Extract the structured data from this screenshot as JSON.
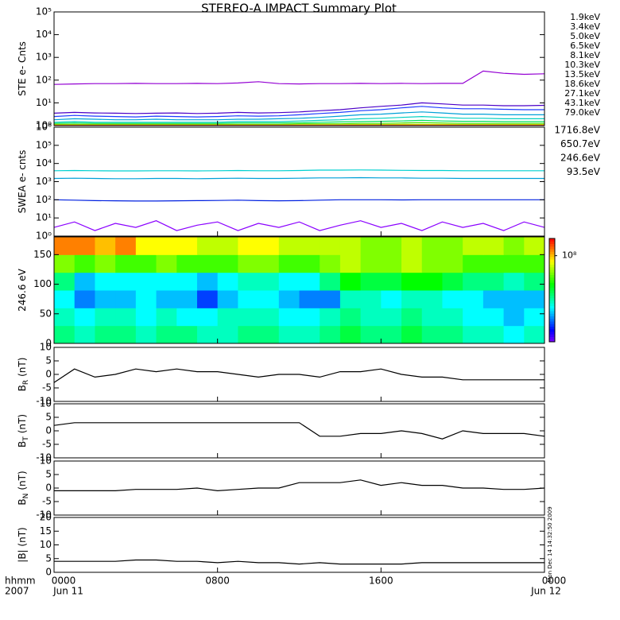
{
  "title": "STEREO-A IMPACT Summary Plot",
  "timestamp": "Mon Dec 14 14:32:50 2009",
  "x_axis": {
    "xlim": [
      0,
      24
    ],
    "xticks": [
      {
        "value": 0,
        "label": "0000"
      },
      {
        "value": 8,
        "label": "0800"
      },
      {
        "value": 16,
        "label": "1600"
      },
      {
        "value": 24,
        "label": "0000"
      }
    ],
    "date_labels": [
      {
        "value": 0,
        "label": "Jun 11"
      },
      {
        "value": 24,
        "label": "Jun 12"
      }
    ],
    "left_labels": [
      "hhmm",
      "2007"
    ],
    "x": [
      0,
      1,
      2,
      3,
      4,
      5,
      6,
      7,
      8,
      9,
      10,
      11,
      12,
      13,
      14,
      15,
      16,
      17,
      18,
      19,
      20,
      21,
      22,
      23,
      24
    ]
  },
  "chart_data": [
    {
      "type": "line",
      "y_label": "STE e- Cnts",
      "log_scale": true,
      "ylim": [
        1,
        100000
      ],
      "yticks": [
        {
          "value": 1,
          "label": "10⁰"
        },
        {
          "value": 10,
          "label": "10¹"
        },
        {
          "value": 100,
          "label": "10²"
        },
        {
          "value": 1000,
          "label": "10³"
        },
        {
          "value": 10000,
          "label": "10⁴"
        },
        {
          "value": 100000,
          "label": "10⁵"
        }
      ],
      "series": [
        {
          "name": "1.9keV",
          "color": "#9400d3",
          "values": [
            65,
            68,
            70,
            70,
            72,
            70,
            70,
            72,
            70,
            75,
            85,
            70,
            68,
            70,
            70,
            72,
            70,
            72,
            70,
            72,
            72,
            250,
            200,
            180,
            190
          ]
        },
        {
          "name": "3.4keV",
          "color": "#4b00c8",
          "values": [
            3.5,
            3.8,
            3.6,
            3.5,
            3.4,
            3.5,
            3.6,
            3.4,
            3.5,
            3.8,
            3.6,
            3.7,
            4,
            4.5,
            5,
            6,
            7,
            8,
            10,
            9,
            8,
            8,
            7.5,
            7.5,
            7.8
          ]
        },
        {
          "name": "5.0keV",
          "color": "#1e3cff",
          "values": [
            2.5,
            2.8,
            2.6,
            2.5,
            2.4,
            2.6,
            2.5,
            2.4,
            2.5,
            2.7,
            2.6,
            2.7,
            3,
            3.4,
            3.8,
            4.5,
            5,
            6,
            7,
            6,
            5.5,
            5.5,
            5.2,
            5,
            5
          ]
        },
        {
          "name": "6.5keV",
          "color": "#00a0d8",
          "values": [
            1.8,
            2,
            1.9,
            1.8,
            1.8,
            1.9,
            1.8,
            1.8,
            1.8,
            1.9,
            1.9,
            2,
            2.1,
            2.3,
            2.6,
            3,
            3.2,
            3.6,
            4,
            3.6,
            3.2,
            3.2,
            3,
            3,
            3
          ]
        },
        {
          "name": "8.1keV",
          "color": "#00d0c0",
          "values": [
            1.4,
            1.5,
            1.4,
            1.4,
            1.4,
            1.4,
            1.4,
            1.4,
            1.4,
            1.5,
            1.5,
            1.5,
            1.6,
            1.7,
            1.8,
            2,
            2.1,
            2.3,
            2.5,
            2.3,
            2.1,
            2.1,
            2,
            2,
            2
          ]
        },
        {
          "name": "10.3keV",
          "color": "#00e060",
          "values": [
            1.25,
            1.3,
            1.25,
            1.25,
            1.25,
            1.25,
            1.25,
            1.25,
            1.25,
            1.3,
            1.3,
            1.3,
            1.35,
            1.4,
            1.45,
            1.5,
            1.55,
            1.6,
            1.7,
            1.6,
            1.55,
            1.55,
            1.5,
            1.5,
            1.5
          ]
        },
        {
          "name": "13.5keV",
          "color": "#40e000",
          "values": [
            1.15,
            1.15,
            1.15,
            1.15,
            1.15,
            1.15,
            1.15,
            1.15,
            1.15,
            1.15,
            1.15,
            1.15,
            1.2,
            1.2,
            1.2,
            1.25,
            1.25,
            1.3,
            1.35,
            1.3,
            1.25,
            1.25,
            1.25,
            1.25,
            1.25
          ]
        },
        {
          "name": "18.6keV",
          "color": "#c0e000",
          "values": [
            1.08,
            1.08,
            1.08,
            1.08,
            1.08,
            1.08,
            1.08,
            1.08,
            1.08,
            1.08,
            1.08,
            1.08,
            1.1,
            1.1,
            1.1,
            1.12,
            1.12,
            1.15,
            1.15,
            1.15,
            1.12,
            1.12,
            1.12,
            1.12,
            1.12
          ]
        },
        {
          "name": "27.1keV",
          "color": "#ffd000",
          "values": [
            1.04,
            1.04,
            1.04,
            1.04,
            1.04,
            1.04,
            1.04,
            1.04,
            1.04,
            1.04,
            1.04,
            1.04,
            1.05,
            1.05,
            1.05,
            1.06,
            1.06,
            1.07,
            1.07,
            1.07,
            1.06,
            1.06,
            1.06,
            1.06,
            1.06
          ]
        },
        {
          "name": "43.1keV",
          "color": "#ff8000",
          "values": [
            1.02,
            1.02,
            1.02,
            1.02,
            1.02,
            1.02,
            1.02,
            1.02,
            1.02,
            1.02,
            1.02,
            1.02,
            1.02,
            1.02,
            1.03,
            1.03,
            1.03,
            1.03,
            1.03,
            1.03,
            1.03,
            1.03,
            1.03,
            1.03,
            1.03
          ]
        },
        {
          "name": "79.0keV",
          "color": "#e00000",
          "values": [
            1.01,
            1.01,
            1.01,
            1.01,
            1.01,
            1.01,
            1.01,
            1.01,
            1.01,
            1.01,
            1.01,
            1.01,
            1.01,
            1.01,
            1.01,
            1.01,
            1.01,
            1.01,
            1.01,
            1.01,
            1.01,
            1.01,
            1.01,
            1.01,
            1.01
          ]
        }
      ]
    },
    {
      "type": "line",
      "y_label": "SWEA e- cnts",
      "log_scale": true,
      "ylim": [
        1,
        1000000
      ],
      "yticks": [
        {
          "value": 1,
          "label": "10⁰"
        },
        {
          "value": 10,
          "label": "10¹"
        },
        {
          "value": 100,
          "label": "10²"
        },
        {
          "value": 1000,
          "label": "10³"
        },
        {
          "value": 10000,
          "label": "10⁴"
        },
        {
          "value": 100000,
          "label": "10⁵"
        },
        {
          "value": 1000000,
          "label": "10⁶"
        }
      ],
      "series": [
        {
          "name": "1716.8eV",
          "color": "#8a00ff",
          "values": [
            3,
            6,
            2,
            5,
            3,
            7,
            2,
            4,
            6,
            2,
            5,
            3,
            6,
            2,
            4,
            7,
            3,
            5,
            2,
            6,
            3,
            5,
            2,
            6,
            3
          ]
        },
        {
          "name": "650.7eV",
          "color": "#0020e0",
          "values": [
            100,
            95,
            90,
            88,
            85,
            85,
            88,
            90,
            92,
            95,
            90,
            88,
            90,
            95,
            100,
            100,
            100,
            98,
            100,
            100,
            100,
            100,
            100,
            100,
            100
          ]
        },
        {
          "name": "246.6eV",
          "color": "#00a0d8",
          "values": [
            1500,
            1550,
            1500,
            1450,
            1450,
            1500,
            1500,
            1450,
            1500,
            1550,
            1500,
            1500,
            1550,
            1600,
            1600,
            1650,
            1600,
            1600,
            1550,
            1550,
            1500,
            1500,
            1500,
            1500,
            1500
          ]
        },
        {
          "name": "93.5eV",
          "color": "#00d0d0",
          "values": [
            4000,
            4100,
            4000,
            3900,
            3900,
            4000,
            4000,
            3900,
            4000,
            4100,
            4000,
            4000,
            4100,
            4300,
            4300,
            4400,
            4300,
            4200,
            4100,
            4100,
            4000,
            4000,
            4000,
            4000,
            4000
          ]
        }
      ]
    },
    {
      "type": "heatmap",
      "y_label": "246.6 eV",
      "ylim": [
        0,
        180
      ],
      "yticks": [
        0,
        50,
        100,
        150
      ],
      "y_edges": [
        0,
        30,
        60,
        90,
        120,
        150,
        180
      ],
      "clim": [
        6.5,
        8.3
      ],
      "cticks": [
        {
          "value": 8,
          "label": "10⁸"
        }
      ],
      "z": [
        [
          7.3,
          7.2,
          7.3,
          7.3,
          7.2,
          7.3,
          7.3,
          7.2,
          7.2,
          7.3,
          7.3,
          7.2,
          7.2,
          7.3,
          7.4,
          7.3,
          7.3,
          7.4,
          7.3,
          7.3,
          7.2,
          7.2,
          7.1,
          7.2
        ],
        [
          7.2,
          7.1,
          7.2,
          7.2,
          7.1,
          7.2,
          7.1,
          7.1,
          7.2,
          7.2,
          7.2,
          7.1,
          7.1,
          7.2,
          7.3,
          7.2,
          7.2,
          7.3,
          7.2,
          7.2,
          7.1,
          7.1,
          7.0,
          7.1
        ],
        [
          7.1,
          6.9,
          7.0,
          7.0,
          7.1,
          7.0,
          7.0,
          6.8,
          7.0,
          7.1,
          7.1,
          7.0,
          6.9,
          6.9,
          7.2,
          7.2,
          7.1,
          7.2,
          7.2,
          7.1,
          7.1,
          7.0,
          7.0,
          7.0
        ],
        [
          7.3,
          7.0,
          7.1,
          7.1,
          7.1,
          7.1,
          7.1,
          7.0,
          7.1,
          7.2,
          7.2,
          7.1,
          7.1,
          7.3,
          7.5,
          7.4,
          7.4,
          7.5,
          7.5,
          7.4,
          7.3,
          7.3,
          7.2,
          7.3
        ],
        [
          7.7,
          7.6,
          7.7,
          7.6,
          7.6,
          7.7,
          7.6,
          7.6,
          7.6,
          7.7,
          7.7,
          7.6,
          7.6,
          7.7,
          7.8,
          7.7,
          7.7,
          7.8,
          7.7,
          7.7,
          7.6,
          7.6,
          7.6,
          7.6
        ],
        [
          8.1,
          8.1,
          8.0,
          8.1,
          7.9,
          7.9,
          7.9,
          7.8,
          7.8,
          7.9,
          7.9,
          7.8,
          7.8,
          7.8,
          7.8,
          7.7,
          7.7,
          7.8,
          7.7,
          7.7,
          7.8,
          7.8,
          7.7,
          7.8
        ]
      ]
    },
    {
      "type": "line",
      "y_label": "B",
      "y_label_sub": "R",
      "y_label_unit": "(nT)",
      "ylim": [
        -10,
        10
      ],
      "yticks": [
        -10,
        -5,
        0,
        5,
        10
      ],
      "series": [
        {
          "color": "#000000",
          "values": [
            -3,
            2,
            -1,
            0,
            2,
            1,
            2,
            1,
            1,
            0,
            -1,
            0,
            0,
            -1,
            1,
            1,
            2,
            0,
            -1,
            -1,
            -2,
            -2,
            -2,
            -2,
            -2
          ]
        }
      ]
    },
    {
      "type": "line",
      "y_label": "B",
      "y_label_sub": "T",
      "y_label_unit": "(nT)",
      "ylim": [
        -10,
        10
      ],
      "yticks": [
        -10,
        -5,
        0,
        5,
        10
      ],
      "series": [
        {
          "color": "#000000",
          "values": [
            2,
            3,
            3,
            3,
            3,
            3,
            3,
            3,
            3,
            3,
            3,
            3,
            3,
            -2,
            -2,
            -1,
            -1,
            0,
            -1,
            -3,
            0,
            -1,
            -1,
            -1,
            -2
          ]
        }
      ]
    },
    {
      "type": "line",
      "y_label": "B",
      "y_label_sub": "N",
      "y_label_unit": "(nT)",
      "ylim": [
        -10,
        10
      ],
      "yticks": [
        -10,
        -5,
        0,
        5,
        10
      ],
      "series": [
        {
          "color": "#000000",
          "values": [
            -1,
            -1,
            -1,
            -1,
            -0.5,
            -0.5,
            -0.5,
            0,
            -1,
            -0.5,
            0,
            0,
            2,
            2,
            2,
            3,
            1,
            2,
            1,
            1,
            0,
            0,
            -0.5,
            -0.5,
            0
          ]
        }
      ]
    },
    {
      "type": "line",
      "y_label": "|B| (nT)",
      "ylim": [
        0,
        20
      ],
      "yticks": [
        0,
        5,
        10,
        15,
        20
      ],
      "series": [
        {
          "color": "#000000",
          "values": [
            4,
            4,
            4,
            4,
            4.5,
            4.5,
            4,
            4,
            3.5,
            4,
            3.5,
            3.5,
            3,
            3.5,
            3,
            3,
            3,
            3,
            3.5,
            3.5,
            3.5,
            3.5,
            3.5,
            3.5,
            3.5
          ]
        }
      ]
    }
  ]
}
